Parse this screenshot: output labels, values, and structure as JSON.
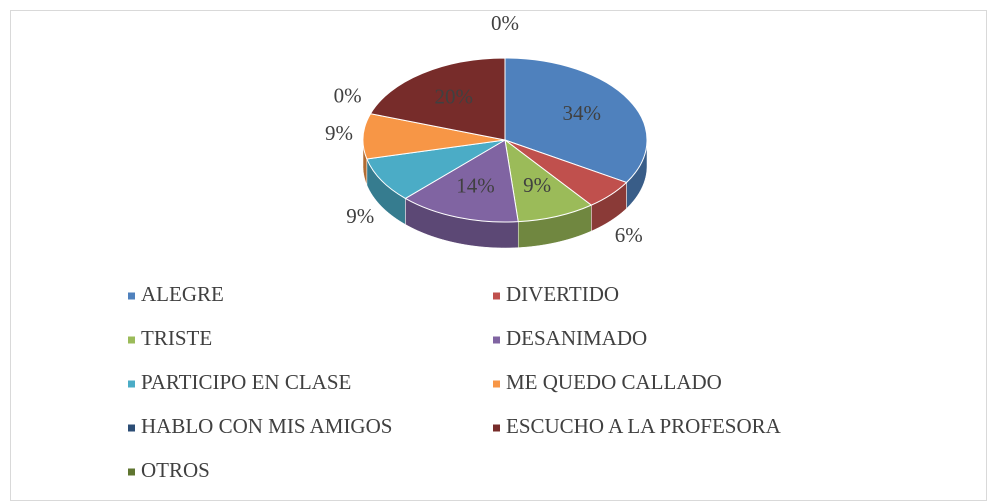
{
  "chart_data": {
    "type": "pie3d",
    "categories": [
      "ALEGRE",
      "DIVERTIDO",
      "TRISTE",
      "DESANIMADO",
      "PARTICIPO EN CLASE",
      "ME QUEDO CALLADO",
      "HABLO CON MIS AMIGOS",
      "ESCUCHO A LA PROFESORA",
      "OTROS"
    ],
    "values": [
      34,
      6,
      9,
      14,
      9,
      9,
      0,
      20,
      0
    ],
    "value_labels": [
      "34%",
      "6%",
      "9%",
      "14%",
      "9%",
      "9%",
      "0%",
      "20%",
      "0%"
    ],
    "colors": [
      "#4f81bd",
      "#c0504d",
      "#9bbb59",
      "#8064a2",
      "#4bacc6",
      "#f79646",
      "#2c4d75",
      "#772c2a",
      "#5f7530"
    ],
    "legend": "bottom"
  }
}
